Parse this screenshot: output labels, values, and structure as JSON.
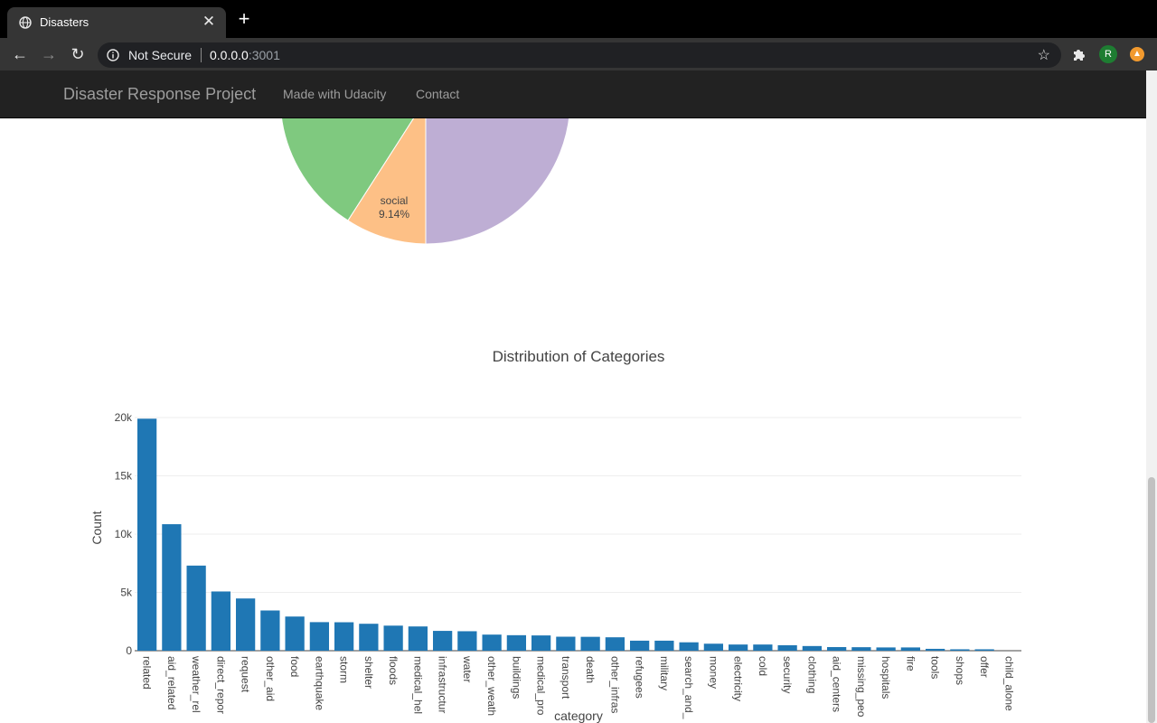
{
  "browser": {
    "tab_title": "Disasters",
    "security_label": "Not Secure",
    "url_host": "0.0.0.0",
    "url_port": ":3001",
    "avatar_letter": "R"
  },
  "navbar": {
    "brand": "Disaster Response Project",
    "links": [
      "Made with Udacity",
      "Contact"
    ]
  },
  "pie": {
    "visible_label": "social",
    "visible_pct": "9.14%",
    "colors": {
      "green": "#7fc97f",
      "orange": "#fdc086",
      "purple": "#beaed4"
    }
  },
  "chart_data": {
    "type": "bar",
    "title": "Distribution of Categories",
    "xlabel": "category",
    "ylabel": "Count",
    "ylim": [
      0,
      20000
    ],
    "yticks": [
      "0",
      "5k",
      "10k",
      "15k",
      "20k"
    ],
    "grid": true,
    "bar_color": "#1f77b4",
    "categories": [
      "related",
      "aid_related",
      "weather_rel",
      "direct_repor",
      "request",
      "other_aid",
      "food",
      "earthquake",
      "storm",
      "shelter",
      "floods",
      "medical_hel",
      "infrastructur",
      "water",
      "other_weath",
      "buildings",
      "medical_pro",
      "transport",
      "death",
      "other_infras",
      "refugees",
      "military",
      "search_and_",
      "money",
      "electricity",
      "cold",
      "security",
      "clothing",
      "aid_centers",
      "missing_peo",
      "hospitals",
      "fire",
      "tools",
      "shops",
      "offer",
      "child_alone"
    ],
    "values": [
      19900,
      10850,
      7300,
      5080,
      4480,
      3450,
      2930,
      2450,
      2440,
      2310,
      2150,
      2080,
      1700,
      1670,
      1380,
      1330,
      1310,
      1200,
      1190,
      1150,
      860,
      860,
      720,
      600,
      530,
      530,
      470,
      400,
      310,
      300,
      280,
      280,
      160,
      120,
      120,
      0
    ]
  }
}
